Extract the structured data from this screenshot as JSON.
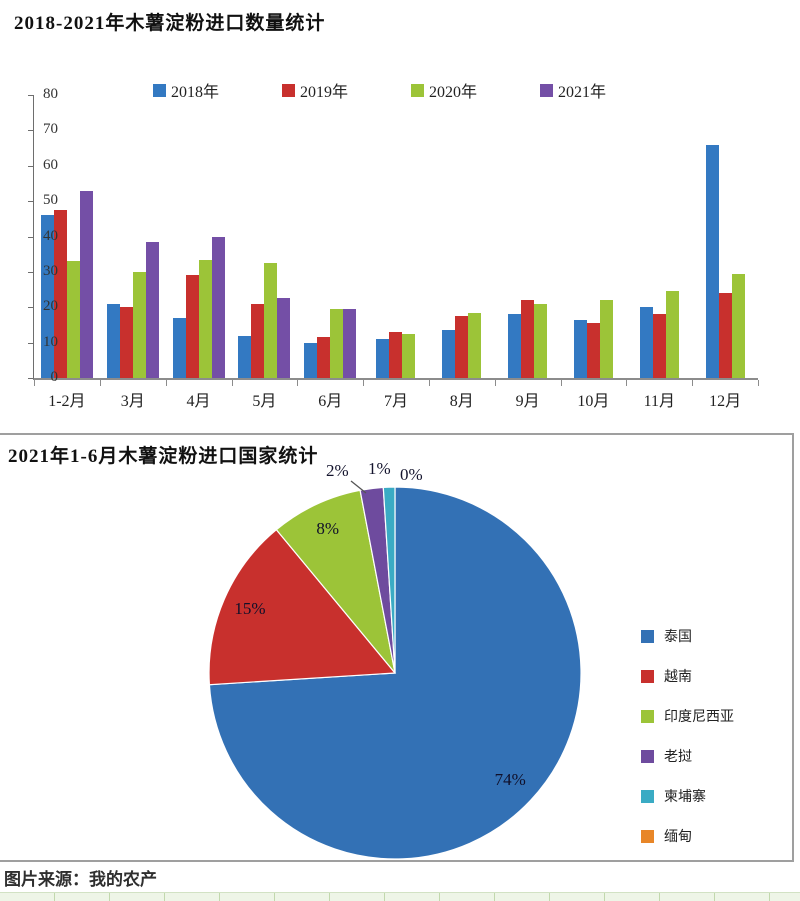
{
  "chart_data": [
    {
      "type": "bar",
      "title": "2018-2021年木薯淀粉进口数量统计",
      "categories": [
        "1-2月",
        "3月",
        "4月",
        "5月",
        "6月",
        "7月",
        "8月",
        "9月",
        "10月",
        "11月",
        "12月"
      ],
      "series": [
        {
          "name": "2018年",
          "color": "#3379c2",
          "values": [
            46,
            21,
            17,
            12,
            10,
            11,
            13.5,
            18,
            16.5,
            20,
            66
          ]
        },
        {
          "name": "2019年",
          "color": "#c8302d",
          "values": [
            47.5,
            20,
            29,
            21,
            11.5,
            13,
            17.5,
            22,
            15.5,
            18,
            24
          ]
        },
        {
          "name": "2020年",
          "color": "#9cc438",
          "values": [
            33,
            30,
            33.5,
            32.5,
            19.5,
            12.5,
            18.5,
            21,
            22,
            24.5,
            29.5
          ]
        },
        {
          "name": "2021年",
          "color": "#744fa6",
          "values": [
            53,
            38.5,
            40,
            22.5,
            19.5,
            null,
            null,
            null,
            null,
            null,
            null
          ]
        }
      ],
      "ylim": [
        0,
        80
      ],
      "y_tick_step": 10,
      "xlabel": "",
      "ylabel": "",
      "grid": false,
      "legend_position": "top"
    },
    {
      "type": "pie",
      "title": "2021年1-6月木薯淀粉进口国家统计",
      "labels": [
        "泰国",
        "越南",
        "印度尼西亚",
        "老挝",
        "柬埔寨",
        "缅甸"
      ],
      "values": [
        74,
        15,
        8,
        2,
        1,
        0
      ],
      "colors": [
        "#3371b5",
        "#c8302d",
        "#9cc438",
        "#6e4b9e",
        "#3aabc4",
        "#e88628"
      ],
      "unit": "%",
      "start_angle": "12-oclock",
      "direction": "clockwise",
      "legend_position": "right",
      "inside_labels": [
        "74%",
        "15%",
        "8%"
      ],
      "outside_labels": [
        "2%",
        "1%",
        "0%"
      ]
    }
  ],
  "source": {
    "text": "图片来源：我的农产"
  }
}
